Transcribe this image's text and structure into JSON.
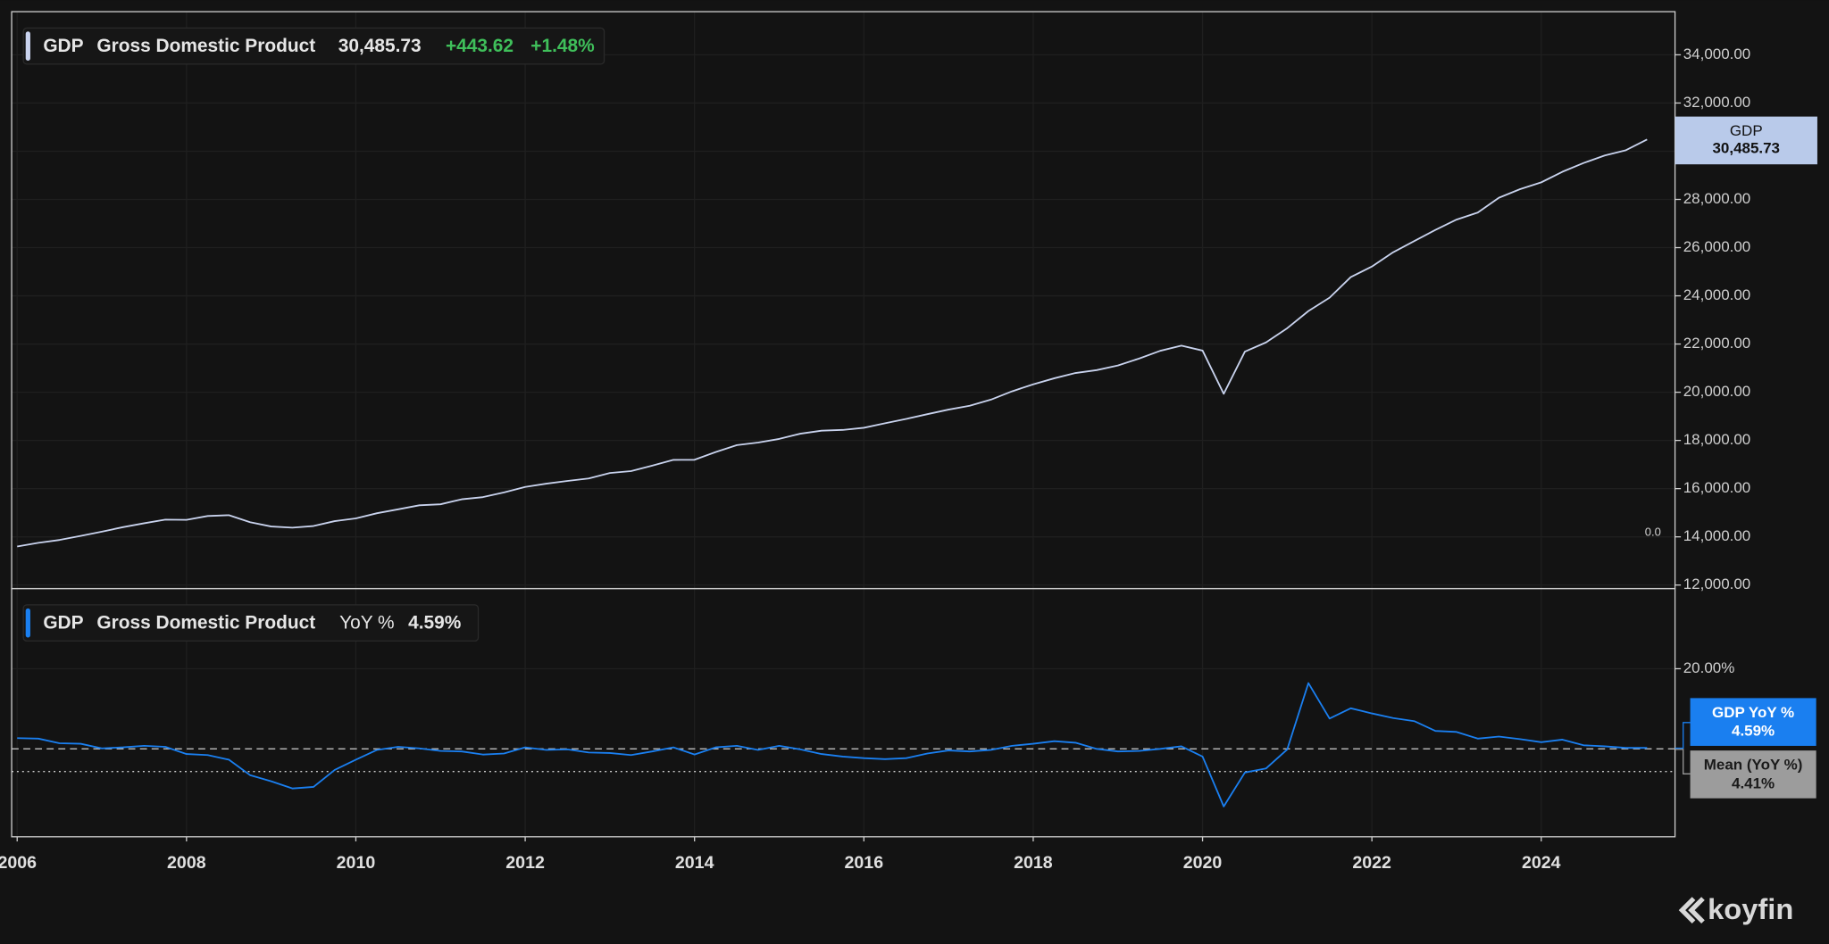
{
  "chart_data": [
    {
      "type": "line",
      "legend": {
        "ticker": "GDP",
        "name": "Gross Domestic Product",
        "value": "30,485.73",
        "change": "+443.62",
        "change_pct": "+1.48%"
      },
      "last_label": {
        "name": "GDP",
        "value": "30,485.73"
      },
      "note_tick": "0.0",
      "x": [
        2006,
        2006.25,
        2006.5,
        2006.75,
        2007,
        2007.25,
        2007.5,
        2007.75,
        2008,
        2008.25,
        2008.5,
        2008.75,
        2009,
        2009.25,
        2009.5,
        2009.75,
        2010,
        2010.25,
        2010.5,
        2010.75,
        2011,
        2011.25,
        2011.5,
        2011.75,
        2012,
        2012.25,
        2012.5,
        2012.75,
        2013,
        2013.25,
        2013.5,
        2013.75,
        2014,
        2014.25,
        2014.5,
        2014.75,
        2015,
        2015.25,
        2015.5,
        2015.75,
        2016,
        2016.25,
        2016.5,
        2016.75,
        2017,
        2017.25,
        2017.5,
        2017.75,
        2018,
        2018.25,
        2018.5,
        2018.75,
        2019,
        2019.25,
        2019.5,
        2019.75,
        2020,
        2020.25,
        2020.5,
        2020.75,
        2021,
        2021.25,
        2021.5,
        2021.75,
        2022,
        2022.25,
        2022.5,
        2022.75,
        2023,
        2023.25,
        2023.5,
        2023.75,
        2024,
        2024.25,
        2024.5,
        2024.75,
        2025,
        2025.25
      ],
      "series": [
        {
          "name": "GDP",
          "color": "#c9d3ee",
          "values": [
            13599,
            13753,
            13871,
            14039,
            14216,
            14402,
            14564,
            14715,
            14706,
            14865,
            14898,
            14609,
            14430,
            14381,
            14449,
            14652,
            14765,
            14980,
            15142,
            15310,
            15351,
            15558,
            15648,
            15842,
            16069,
            16207,
            16320,
            16421,
            16649,
            16728,
            16953,
            17193,
            17198,
            17519,
            17805,
            17912,
            18063,
            18280,
            18406,
            18436,
            18525,
            18712,
            18892,
            19090,
            19280,
            19438,
            19692,
            20038,
            20328,
            20580,
            20798,
            20918,
            21111,
            21397,
            21718,
            21933,
            21728,
            19935,
            21685,
            22068,
            22657,
            23368,
            23922,
            24777,
            25215,
            25805,
            26272,
            26734,
            27164,
            27454,
            28070,
            28425,
            28708,
            29147,
            29511,
            29825,
            30042,
            30485.73
          ]
        }
      ],
      "xlim": [
        2005.935,
        2025.58
      ],
      "ylim": [
        11855,
        35790
      ],
      "yticks": [
        {
          "value": 12000,
          "label": "12,000.00"
        },
        {
          "value": 14000,
          "label": "14,000.00"
        },
        {
          "value": 16000,
          "label": "16,000.00"
        },
        {
          "value": 18000,
          "label": "18,000.00"
        },
        {
          "value": 20000,
          "label": "20,000.00"
        },
        {
          "value": 22000,
          "label": "22,000.00"
        },
        {
          "value": 24000,
          "label": "24,000.00"
        },
        {
          "value": 26000,
          "label": "26,000.00"
        },
        {
          "value": 28000,
          "label": "28,000.00"
        },
        {
          "value": 30000,
          "label": "30,000.00"
        },
        {
          "value": 32000,
          "label": "32,000.00"
        },
        {
          "value": 34000,
          "label": "34,000.00"
        }
      ],
      "grid": true
    },
    {
      "type": "line",
      "legend": {
        "ticker": "GDP",
        "name": "Gross Domestic Product",
        "measure": "YoY %",
        "value": "4.59%"
      },
      "last_label": {
        "name": "GDP YoY %",
        "value": "4.59%"
      },
      "mean": {
        "label": "Mean (YoY %)",
        "value": 4.41,
        "value_label": "4.41%"
      },
      "x": [
        2006,
        2006.25,
        2006.5,
        2006.75,
        2007,
        2007.25,
        2007.5,
        2007.75,
        2008,
        2008.25,
        2008.5,
        2008.75,
        2009,
        2009.25,
        2009.5,
        2009.75,
        2010,
        2010.25,
        2010.5,
        2010.75,
        2011,
        2011.25,
        2011.5,
        2011.75,
        2012,
        2012.25,
        2012.5,
        2012.75,
        2013,
        2013.25,
        2013.5,
        2013.75,
        2014,
        2014.25,
        2014.5,
        2014.75,
        2015,
        2015.25,
        2015.5,
        2015.75,
        2016,
        2016.25,
        2016.5,
        2016.75,
        2017,
        2017.25,
        2017.5,
        2017.75,
        2018,
        2018.25,
        2018.5,
        2018.75,
        2019,
        2019.25,
        2019.5,
        2019.75,
        2020,
        2020.25,
        2020.5,
        2020.75,
        2021,
        2021.25,
        2021.5,
        2021.75,
        2022,
        2022.25,
        2022.5,
        2022.75,
        2023,
        2023.25,
        2023.5,
        2023.75,
        2024,
        2024.25,
        2024.5,
        2024.75,
        2025,
        2025.25
      ],
      "series": [
        {
          "name": "GDP YoY %",
          "color": "#1a7ff0",
          "values": [
            6.5,
            6.4,
            5.5,
            5.4,
            4.5,
            4.7,
            5.0,
            4.8,
            3.4,
            3.2,
            2.3,
            -0.7,
            -1.9,
            -3.3,
            -3.0,
            0.3,
            2.3,
            4.2,
            4.8,
            4.5,
            4.0,
            3.9,
            3.3,
            3.5,
            4.7,
            4.2,
            4.3,
            3.7,
            3.6,
            3.2,
            3.9,
            4.7,
            3.3,
            4.7,
            5.0,
            4.2,
            5.0,
            4.3,
            3.4,
            2.9,
            2.6,
            2.4,
            2.6,
            3.5,
            4.1,
            3.9,
            4.2,
            5.0,
            5.4,
            5.9,
            5.6,
            4.4,
            3.9,
            4.0,
            4.4,
            4.9,
            2.9,
            -6.8,
            -0.2,
            0.6,
            4.3,
            17.2,
            10.3,
            12.3,
            11.3,
            10.4,
            9.8,
            7.9,
            7.7,
            6.4,
            6.8,
            6.3,
            5.7,
            6.2,
            5.1,
            4.9,
            4.6,
            4.59
          ]
        }
      ],
      "xlim": [
        2005.935,
        2025.58
      ],
      "xticks": [
        2006,
        2008,
        2010,
        2012,
        2014,
        2016,
        2018,
        2020,
        2022,
        2024
      ],
      "ylim": [
        -12.7,
        35.6
      ],
      "yticks": [
        {
          "value": 20,
          "label": "20.00%"
        }
      ],
      "grid": true
    }
  ],
  "brand": "koyfin"
}
